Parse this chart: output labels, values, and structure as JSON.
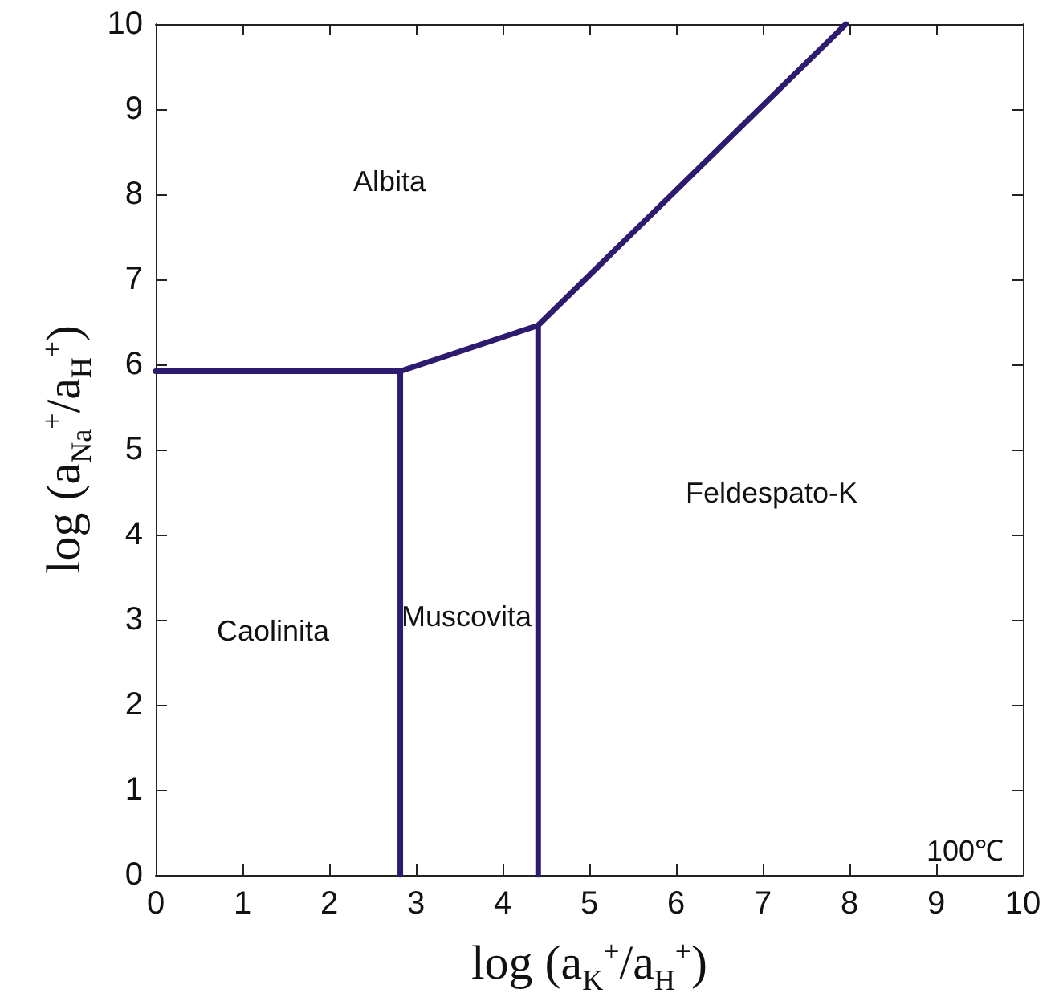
{
  "chart_data": {
    "type": "line",
    "xlabel": "log (a$_{K}$$^{+}$/a$_{H}$$^{+}$)",
    "ylabel": "log (a$_{Na}$$^{+}$/a$_{H}$$^{+}$)",
    "series": [
      {
        "color": "#2e1a6e",
        "x": [
          0,
          2.82,
          4.41,
          7.96
        ],
        "values": [
          5.92,
          5.92,
          6.46,
          10
        ]
      },
      {
        "color": "#2e1a6e",
        "x": [
          2.82,
          2.82
        ],
        "values": [
          0,
          5.92
        ]
      },
      {
        "color": "#2e1a6e",
        "x": [
          4.41,
          4.41
        ],
        "values": [
          0,
          6.46
        ]
      }
    ],
    "xlim": [
      0,
      10
    ],
    "ylim": [
      0,
      10
    ],
    "xticks": [
      0,
      1,
      2,
      3,
      4,
      5,
      6,
      7,
      8,
      9,
      10
    ],
    "yticks": [
      0,
      1,
      2,
      3,
      4,
      5,
      6,
      7,
      8,
      9,
      10
    ],
    "grid": false,
    "marker": "none",
    "line_style": "solid",
    "annotations": [
      "Albita",
      "Caolinita",
      "Muscovita",
      "Feldespato-K",
      "100℃"
    ]
  }
}
